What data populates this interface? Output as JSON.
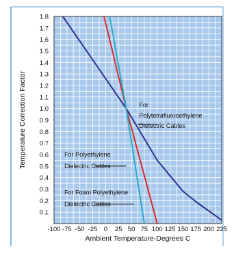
{
  "chart_data": {
    "type": "line",
    "title": "",
    "xlabel": "Ambient Temperature-Degrees C",
    "ylabel": "Temperature Correction Factor",
    "xlim": [
      -100,
      225
    ],
    "ylim": [
      0,
      1.8
    ],
    "x_ticks": [
      "-100",
      "-75",
      "-50",
      "-25",
      "0",
      "25",
      "50",
      "75",
      "100",
      "125",
      "150",
      "175",
      "200",
      "225"
    ],
    "y_ticks": [
      "0.1",
      "0.2",
      "0.3",
      "0.4",
      "0.5",
      "0.6",
      "0.7",
      "0.8",
      "0.9",
      "1.0",
      "1.1",
      "1.2",
      "1.3",
      "1.4",
      "1.5",
      "1.6",
      "1.7",
      "1.8"
    ],
    "grid": true,
    "background_color": "#a9c9ec",
    "grid_color": "#ffffff",
    "series": [
      {
        "color": "#2b2f8f",
        "points": [
          [
            -83,
            1.8
          ],
          [
            40,
            1.0
          ],
          [
            100,
            0.55
          ],
          [
            150,
            0.28
          ],
          [
            175,
            0.19
          ],
          [
            200,
            0.11
          ],
          [
            225,
            0.03
          ]
        ]
      },
      {
        "color": "#d42a2a",
        "points": [
          [
            -3,
            1.8
          ],
          [
            40,
            1.0
          ],
          [
            100,
            0.0
          ]
        ]
      },
      {
        "color": "#27a9c8",
        "points": [
          [
            8,
            1.8
          ],
          [
            40,
            1.0
          ],
          [
            75,
            0.0
          ]
        ]
      }
    ],
    "annotations": [
      {
        "lines": [
          "For",
          "Polytetrafluoroethylene",
          "Dielectric Cables"
        ],
        "text_x": 65,
        "text_y": [
          1.03,
          0.94,
          0.85
        ],
        "leader": [
          [
            62,
            0.86
          ],
          [
            100,
            0.86
          ]
        ]
      },
      {
        "lines": [
          "For Polyethylene",
          "Dielectric Cables"
        ],
        "text_x": -80,
        "text_y": [
          0.6,
          0.5
        ],
        "leader": [
          [
            -22,
            0.5
          ],
          [
            40,
            0.5
          ]
        ]
      },
      {
        "lines": [
          "For Foam Polyethylene",
          "Dielectric Cables"
        ],
        "text_x": -80,
        "text_y": [
          0.27,
          0.17
        ],
        "leader": [
          [
            -22,
            0.17
          ],
          [
            55,
            0.17
          ]
        ]
      }
    ]
  }
}
